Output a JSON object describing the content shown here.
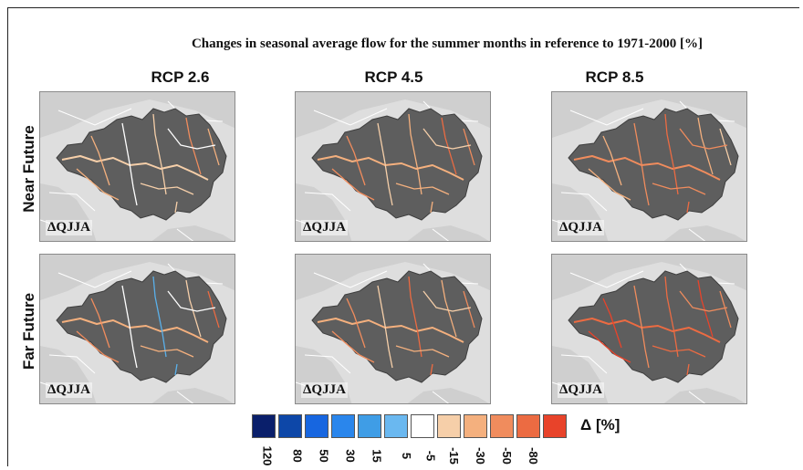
{
  "title": "Changes in seasonal average flow for the summer months in reference to 1971-2000 [%]",
  "columns": [
    "RCP 2.6",
    "RCP 4.5",
    "RCP 8.5"
  ],
  "rows": [
    "Near Future",
    "Far Future"
  ],
  "panel_label": "ΔQJJA",
  "panels": [
    {
      "row": "Near Future",
      "scenario": "RCP 2.6",
      "palette": [
        "#f6cfa9",
        "#f4b07e",
        "#ffffff",
        "#f6cfa9",
        "#f08c5d",
        "#f4b07e"
      ]
    },
    {
      "row": "Near Future",
      "scenario": "RCP 4.5",
      "palette": [
        "#f4b07e",
        "#f08c5d",
        "#f6cfa9",
        "#f4b07e",
        "#ec6b42",
        "#f08c5d"
      ]
    },
    {
      "row": "Near Future",
      "scenario": "RCP 8.5",
      "palette": [
        "#f08c5d",
        "#f4b07e",
        "#f08c5d",
        "#ec6b42",
        "#f4b07e",
        "#f6cfa9"
      ]
    },
    {
      "row": "Far Future",
      "scenario": "RCP 2.6",
      "palette": [
        "#f4b07e",
        "#f08c5d",
        "#ffffff",
        "#5ab0ea",
        "#f6cfa9",
        "#ec6b42"
      ]
    },
    {
      "row": "Far Future",
      "scenario": "RCP 4.5",
      "palette": [
        "#f4b07e",
        "#f08c5d",
        "#f6cfa9",
        "#ec6b42",
        "#f4b07e",
        "#f08c5d"
      ]
    },
    {
      "row": "Far Future",
      "scenario": "RCP 8.5",
      "palette": [
        "#ec6b42",
        "#e8432a",
        "#f08c5d",
        "#ec6b42",
        "#e8432a",
        "#f08c5d"
      ]
    }
  ],
  "colors": {
    "land": "#dedede",
    "basin": "#5e5e5e",
    "borders": "#ffffff"
  },
  "legend": {
    "unit": "Δ [%]",
    "bins": [
      {
        "color": "#0a1f6b",
        "label": "120"
      },
      {
        "color": "#0d47a8",
        "label": "80"
      },
      {
        "color": "#1766e0",
        "label": "50"
      },
      {
        "color": "#2a86ec",
        "label": "30"
      },
      {
        "color": "#3f9de6",
        "label": "15"
      },
      {
        "color": "#6ab8f0",
        "label": "5"
      },
      {
        "color": "#ffffff",
        "label": "-5"
      },
      {
        "color": "#f6cfa9",
        "label": "-15"
      },
      {
        "color": "#f4b07e",
        "label": "-30"
      },
      {
        "color": "#f08c5d",
        "label": "-50"
      },
      {
        "color": "#ec6b42",
        "label": "-80"
      },
      {
        "color": "#e8432a",
        "label": ""
      }
    ]
  }
}
